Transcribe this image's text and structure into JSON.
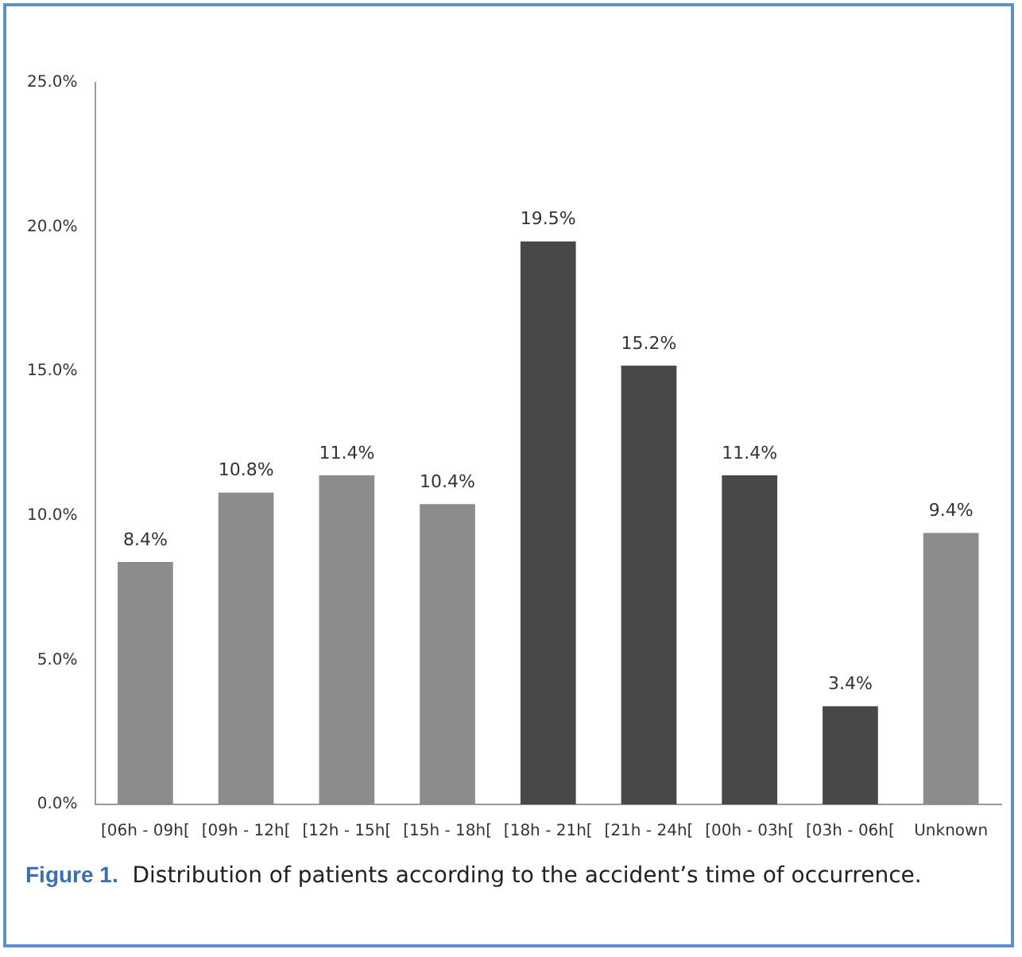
{
  "chart_data": {
    "type": "bar",
    "categories": [
      "[06h - 09h[",
      "[09h - 12h[",
      "[12h - 15h[",
      "[15h - 18h[",
      "[18h - 21h[",
      "[21h - 24h[",
      "[00h - 03h[",
      "[03h - 06h[",
      "Unknown"
    ],
    "values": [
      8.4,
      10.8,
      11.4,
      10.4,
      19.5,
      15.2,
      11.4,
      3.4,
      9.4
    ],
    "colors": [
      "#8c8c8f",
      "#8c8c8f",
      "#8c8c8f",
      "#8c8c8f",
      "#48484a",
      "#48484a",
      "#48484a",
      "#48484a",
      "#8c8c8f"
    ],
    "value_labels": [
      "8.4%",
      "10.8%",
      "11.4%",
      "10.4%",
      "19.5%",
      "15.2%",
      "11.4%",
      "3.4%",
      "9.4%"
    ],
    "ylim": [
      0,
      25
    ],
    "yticks": [
      {
        "value": 0,
        "label": "0.0%"
      },
      {
        "value": 5,
        "label": "5.0%"
      },
      {
        "value": 10,
        "label": "10.0%"
      },
      {
        "value": 15,
        "label": "15.0%"
      },
      {
        "value": 20,
        "label": "20.0%"
      },
      {
        "value": 25,
        "label": "25.0%"
      }
    ],
    "grid": false,
    "legend": false,
    "annotations": [
      "Figure 1.",
      "Distribution of patients according to the accident’s time of occurrence."
    ]
  }
}
